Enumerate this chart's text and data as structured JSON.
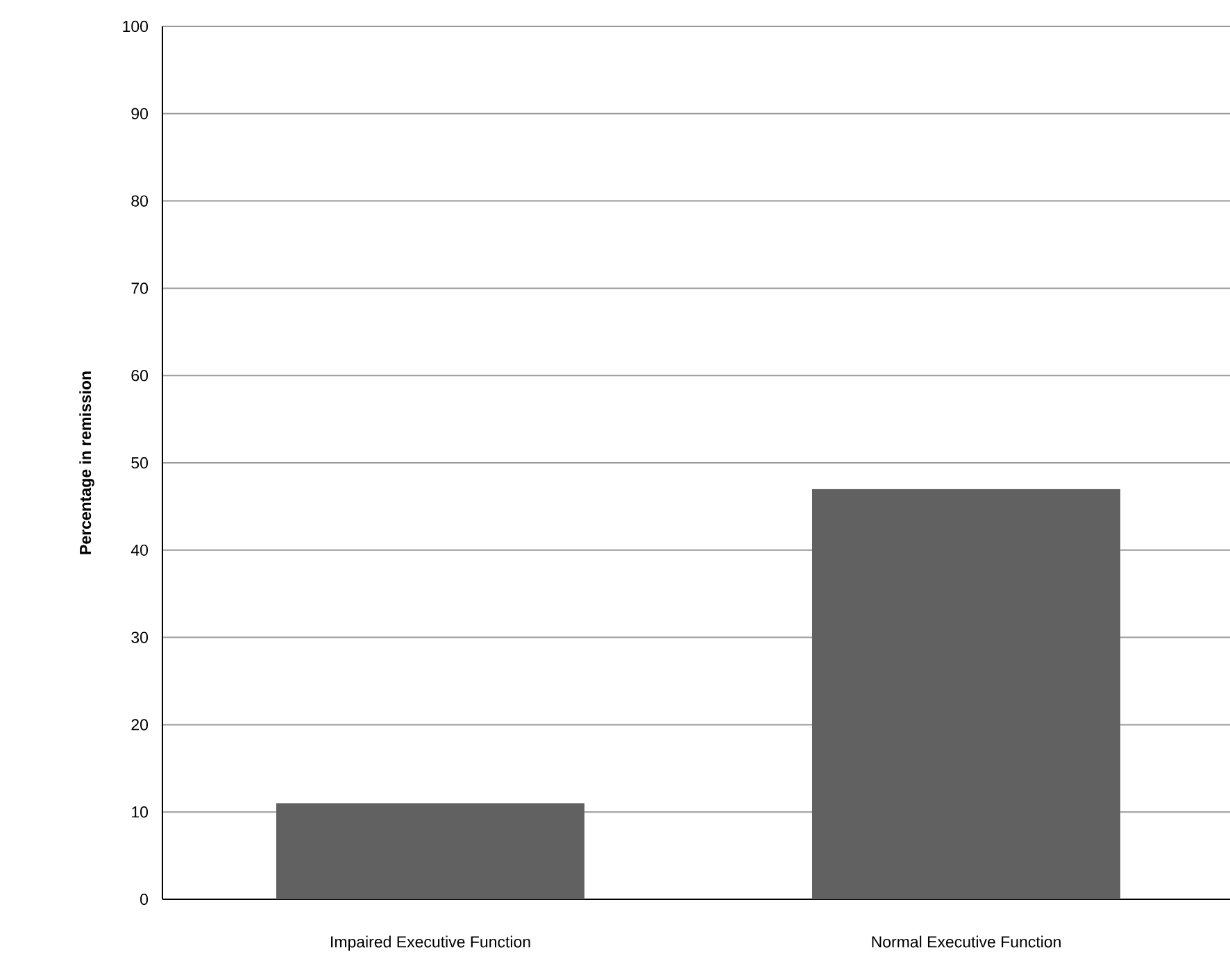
{
  "chart_data": {
    "type": "bar",
    "ylabel": "**Percentage in remission**",
    "categories": [
      "Impaired Executive Function",
      "Normal Executive Function"
    ],
    "values": [
      11,
      47
    ],
    "color": "#616161",
    "ylim": [
      0,
      100
    ],
    "yticks": [
      0,
      10,
      20,
      30,
      40,
      50,
      60,
      70,
      80,
      90,
      100
    ],
    "grid": "y"
  }
}
